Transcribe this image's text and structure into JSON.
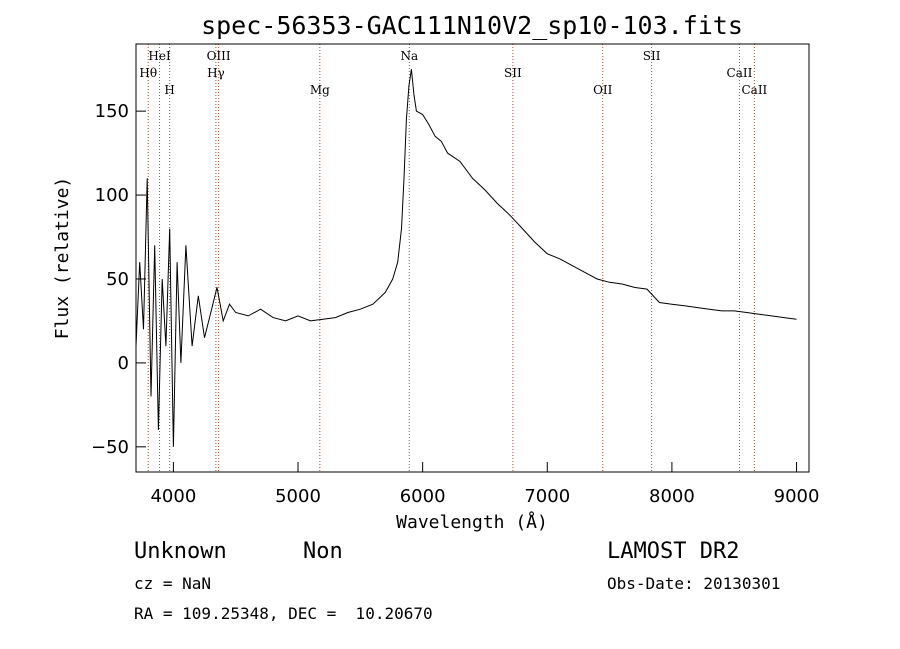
{
  "chart_data": {
    "type": "line",
    "title": "spec-56353-GAC111N10V2_sp10-103.fits",
    "xlabel": "Wavelength (Å)",
    "ylabel": "Flux (relative)",
    "xlim": [
      3700,
      9100
    ],
    "ylim": [
      -65,
      190
    ],
    "x_ticks": [
      4000,
      5000,
      6000,
      7000,
      8000,
      9000
    ],
    "y_ticks": [
      -50,
      0,
      50,
      100,
      150
    ],
    "x_tick_labels": [
      "4000",
      "5000",
      "6000",
      "7000",
      "8000",
      "9000"
    ],
    "y_tick_labels": [
      "−50",
      "0",
      "50",
      "100",
      "150"
    ],
    "grid": false,
    "line_color": "#000000",
    "marker_color": "#a0522d",
    "series": [
      {
        "x": [
          3700,
          3730,
          3760,
          3790,
          3820,
          3850,
          3880,
          3910,
          3940,
          3970,
          4000,
          4030,
          4060,
          4100,
          4150,
          4200,
          4250,
          4300,
          4350,
          4400,
          4450,
          4500,
          4600,
          4700,
          4800,
          4900,
          5000,
          5100,
          5200,
          5300,
          5400,
          5500,
          5600,
          5700,
          5760,
          5800,
          5830,
          5850,
          5870,
          5890,
          5910,
          5930,
          5950,
          6000,
          6050,
          6100,
          6150,
          6200,
          6300,
          6400,
          6500,
          6600,
          6700,
          6800,
          6900,
          7000,
          7100,
          7200,
          7300,
          7400,
          7500,
          7600,
          7700,
          7800,
          7900,
          8000,
          8100,
          8200,
          8300,
          8400,
          8500,
          8600,
          8700,
          8800,
          8900,
          9000
        ],
        "y": [
          10,
          60,
          20,
          110,
          -20,
          70,
          -40,
          50,
          10,
          80,
          -50,
          60,
          0,
          70,
          10,
          40,
          15,
          30,
          45,
          25,
          35,
          30,
          28,
          32,
          27,
          25,
          28,
          25,
          26,
          27,
          30,
          32,
          35,
          42,
          50,
          60,
          80,
          110,
          145,
          165,
          175,
          160,
          150,
          148,
          142,
          135,
          132,
          125,
          120,
          110,
          103,
          95,
          88,
          80,
          72,
          65,
          62,
          58,
          54,
          50,
          48,
          47,
          45,
          44,
          36,
          35,
          34,
          33,
          32,
          31,
          31,
          30,
          29,
          28,
          27,
          26
        ]
      }
    ],
    "lines": [
      {
        "label": "HeI",
        "x": 3889
      },
      {
        "label": "Hθ",
        "x": 3798
      },
      {
        "label": "H",
        "x": 3970
      },
      {
        "label": "OIII",
        "x": 4363
      },
      {
        "label": "Hγ",
        "x": 4341
      },
      {
        "label": "Mg",
        "x": 5175
      },
      {
        "label": "Na",
        "x": 5893
      },
      {
        "label": "SII",
        "x": 6724
      },
      {
        "label": "OII",
        "x": 7445
      },
      {
        "label": "SII",
        "x": 7837
      },
      {
        "label": "CaII",
        "x": 8542
      },
      {
        "label": "CaII",
        "x": 8662
      }
    ]
  },
  "info": {
    "object_class": "Unknown",
    "subclass": "Non",
    "survey": "LAMOST DR2",
    "cz": "cz = NaN",
    "obs_date": "Obs-Date: 20130301",
    "coords": "RA = 109.25348, DEC =  10.20670"
  }
}
